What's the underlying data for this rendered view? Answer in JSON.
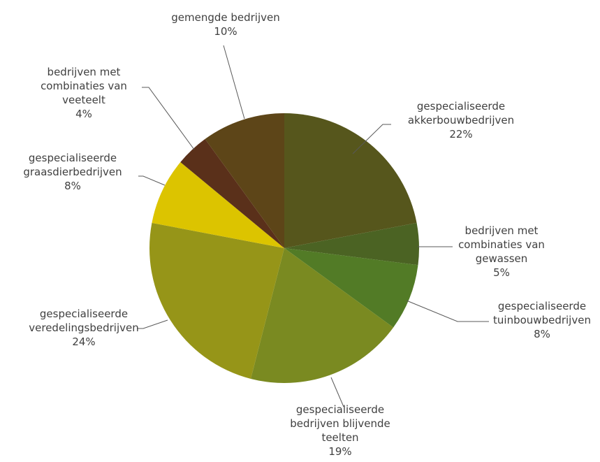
{
  "chart_data": {
    "type": "pie",
    "title": "",
    "legend": "none",
    "slices": [
      {
        "lines": [
          "gespecialiseerde",
          "akkerbouwbedrijven"
        ],
        "value": 22,
        "label": "22%",
        "color": "#56561c"
      },
      {
        "lines": [
          "bedrijven met",
          "combinaties van",
          "gewassen"
        ],
        "value": 5,
        "label": "5%",
        "color": "#4b6323"
      },
      {
        "lines": [
          "gespecialiseerde",
          "tuinbouwbedrijven"
        ],
        "value": 8,
        "label": "8%",
        "color": "#527b26"
      },
      {
        "lines": [
          "gespecialiseerde",
          "bedrijven blijvende",
          "teelten"
        ],
        "value": 19,
        "label": "19%",
        "color": "#7a8a21"
      },
      {
        "lines": [
          "gespecialiseerde",
          "veredelingsbedrijven"
        ],
        "value": 24,
        "label": "24%",
        "color": "#969518"
      },
      {
        "lines": [
          "gespecialiseerde",
          "graasdierbedrijven"
        ],
        "value": 8,
        "label": "8%",
        "color": "#dcc400"
      },
      {
        "lines": [
          "bedrijven met",
          "combinaties van",
          "veeteelt"
        ],
        "value": 4,
        "label": "4%",
        "color": "#5a301a"
      },
      {
        "lines": [
          "gemengde bedrijven"
        ],
        "value": 10,
        "label": "10%",
        "color": "#5d4518"
      }
    ]
  }
}
